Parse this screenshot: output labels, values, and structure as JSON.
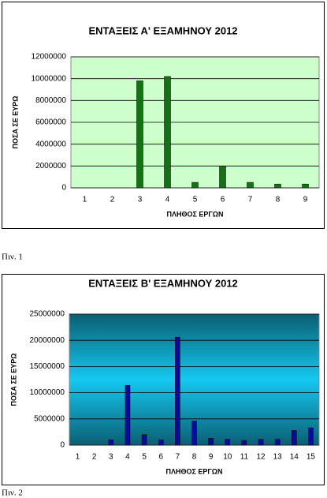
{
  "chart_data": [
    {
      "type": "bar",
      "title": "ΕΝΤΑΞΕΙΣ Α' ΕΞΑΜΗΝΟΥ 2012",
      "y_label": "ΠΟΣΑ ΣΕ ΕΥΡΩ",
      "x_label": "ΠΛΗΘΟΣ ΕΡΓΩΝ",
      "categories": [
        "1",
        "2",
        "3",
        "4",
        "5",
        "6",
        "7",
        "8",
        "9"
      ],
      "values": [
        0,
        0,
        9800000,
        10200000,
        500000,
        2000000,
        500000,
        350000,
        350000
      ],
      "color": "#137313",
      "ylim": [
        0,
        12000000
      ],
      "yticks": [
        0,
        2000000,
        4000000,
        6000000,
        8000000,
        10000000,
        12000000
      ],
      "grid": true
    },
    {
      "type": "bar",
      "title": "ΕΝΤΑΞΕΙΣ Β'  ΕΞΑΜΗΝΟΥ 2012",
      "y_label": "ΠΟΣΑ ΣΕ ΕΥΡΩ",
      "x_label": "ΠΛΗΘΟΣ ΕΡΓΩΝ",
      "categories": [
        "1",
        "2",
        "3",
        "4",
        "5",
        "6",
        "7",
        "8",
        "9",
        "10",
        "11",
        "12",
        "13",
        "14",
        "15"
      ],
      "values": [
        0,
        0,
        1000000,
        11400000,
        2000000,
        1000000,
        20600000,
        4600000,
        1300000,
        1100000,
        900000,
        1100000,
        1100000,
        2800000,
        3300000
      ],
      "color": "#0a0a9e",
      "ylim": [
        0,
        25000000
      ],
      "yticks": [
        0,
        5000000,
        10000000,
        15000000,
        20000000,
        25000000
      ],
      "grid": true
    }
  ],
  "captions": [
    "Πιν. 1",
    "Πιν. 2"
  ]
}
